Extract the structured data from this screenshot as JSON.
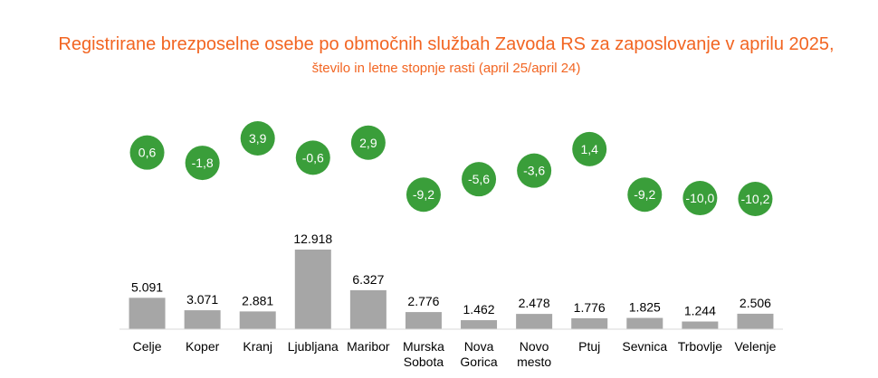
{
  "chart_data": {
    "type": "bar",
    "title": "Registrirane brezposelne osebe po območnih službah Zavoda RS za zaposlovanje v aprilu 2025,",
    "subtitle": "število in letne stopnje rasti (april 25/april 24)",
    "categories": [
      "Celje",
      "Koper",
      "Kranj",
      "Ljubljana",
      "Maribor",
      "Murska Sobota",
      "Nova Gorica",
      "Novo mesto",
      "Ptuj",
      "Sevnica",
      "Trbovlje",
      "Velenje"
    ],
    "category_lines": [
      [
        "Celje"
      ],
      [
        "Koper"
      ],
      [
        "Kranj"
      ],
      [
        "Ljubljana"
      ],
      [
        "Maribor"
      ],
      [
        "Murska",
        "Sobota"
      ],
      [
        "Nova",
        "Gorica"
      ],
      [
        "Novo",
        "mesto"
      ],
      [
        "Ptuj"
      ],
      [
        "Sevnica"
      ],
      [
        "Trbovlje"
      ],
      [
        "Velenje"
      ]
    ],
    "series": [
      {
        "type": "bar",
        "values": [
          5091,
          3071,
          2881,
          12918,
          6327,
          2776,
          1462,
          2478,
          1776,
          1825,
          1244,
          2506
        ],
        "labels": [
          "5.091",
          "3.071",
          "2.881",
          "12.918",
          "6.327",
          "2.776",
          "1.462",
          "2.478",
          "1.776",
          "1.825",
          "1.244",
          "2.506"
        ],
        "color": "#a6a6a6"
      },
      {
        "type": "scatter",
        "values": [
          0.6,
          -1.8,
          3.9,
          -0.6,
          2.9,
          -9.2,
          -5.6,
          -3.6,
          1.4,
          -9.2,
          -10.0,
          -10.2
        ],
        "labels": [
          "0,6",
          "-1,8",
          "3,9",
          "-0,6",
          "2,9",
          "-9,2",
          "-5,6",
          "-3,6",
          "1,4",
          "-9,2",
          "-10,0",
          "-10,2"
        ],
        "color": "#3a9e3a"
      }
    ],
    "ylim": [
      0,
      12918
    ],
    "rate_range": [
      -10.2,
      3.9
    ],
    "grid": false,
    "legend": "none"
  }
}
